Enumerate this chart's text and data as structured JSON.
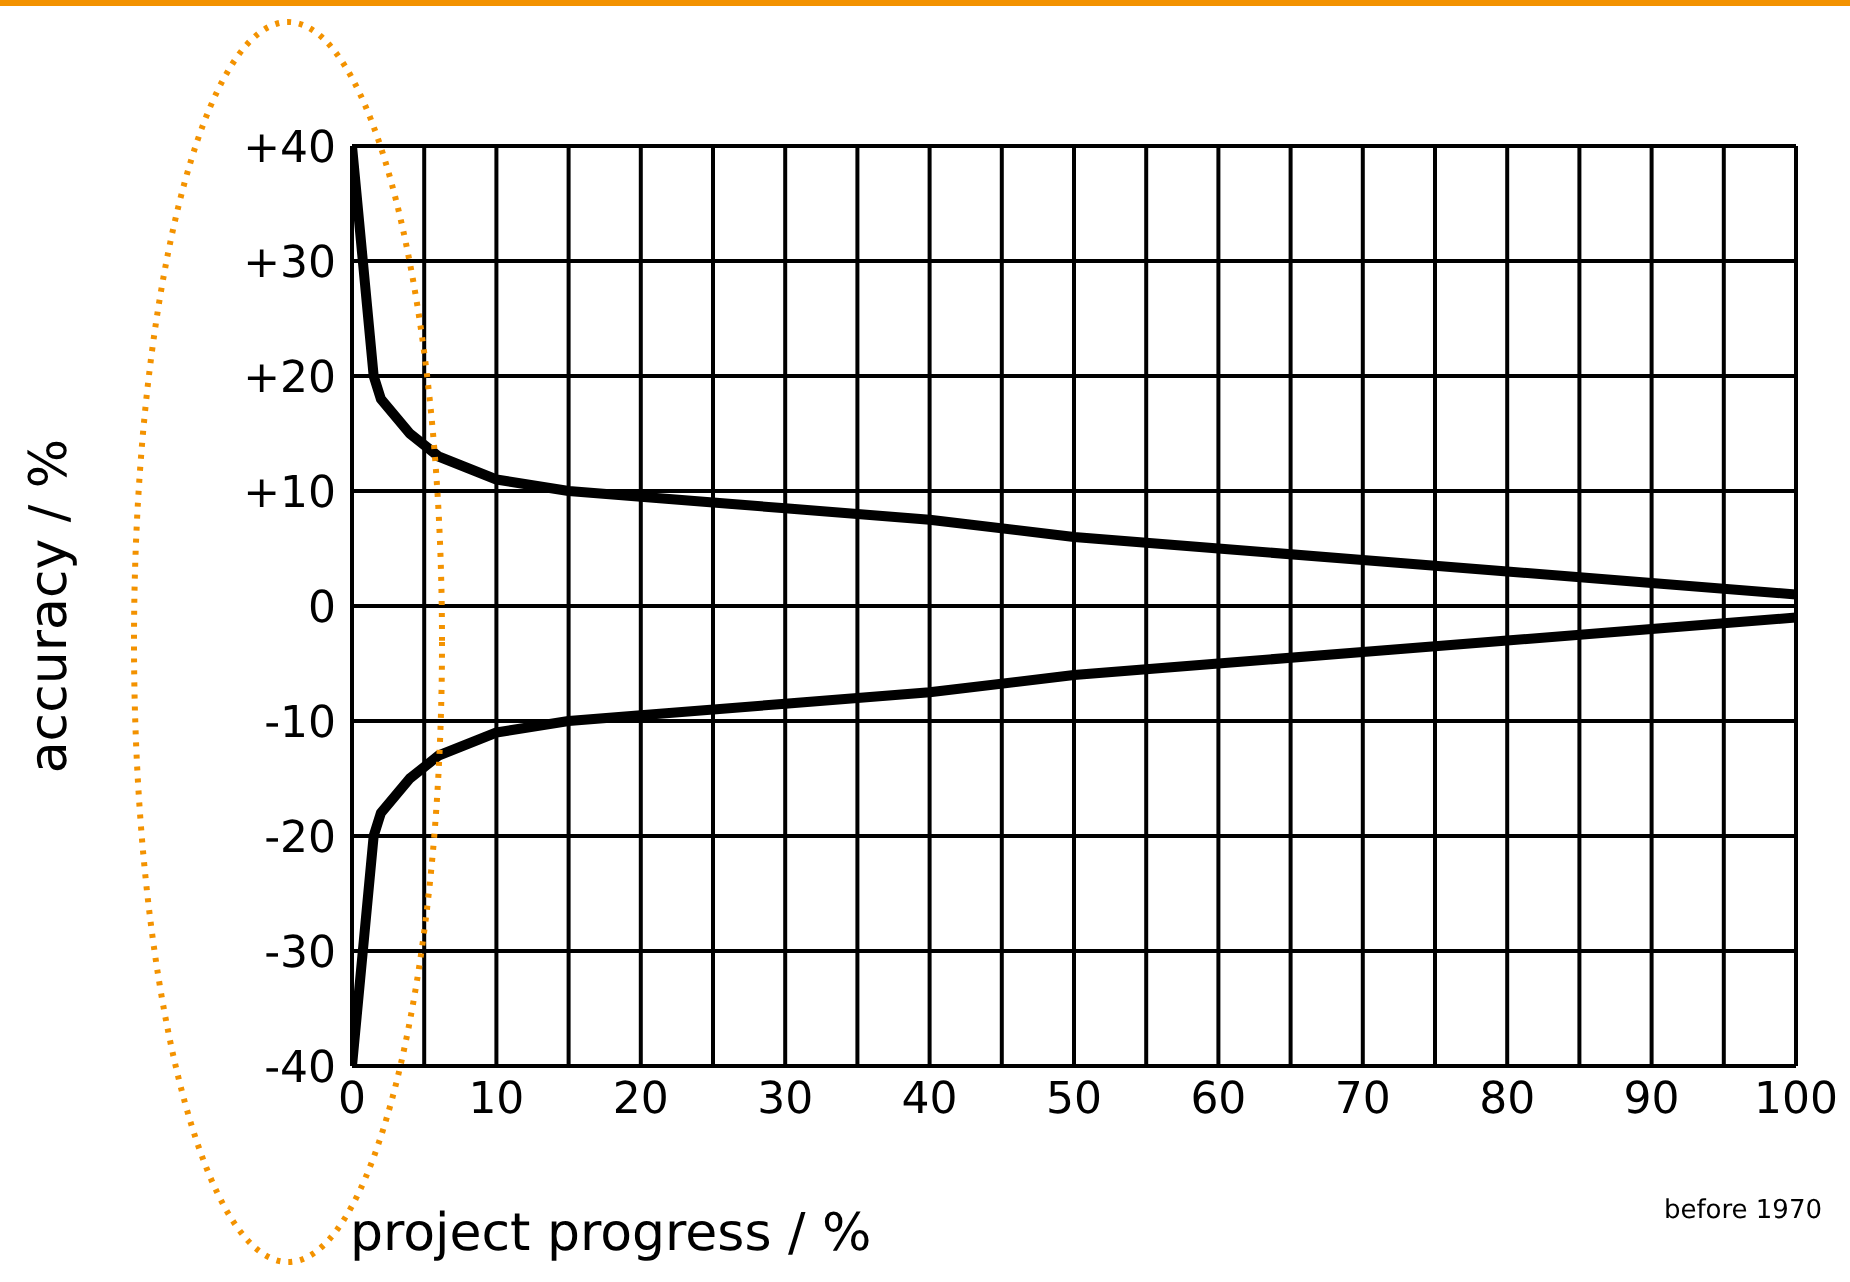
{
  "chart_data": {
    "type": "line",
    "xlabel": "project progress / %",
    "ylabel": "accuracy / %",
    "annotations": [
      "before 1970"
    ],
    "xlim": [
      0,
      100
    ],
    "ylim": [
      -40,
      40
    ],
    "xticks": [
      0,
      {
        "value": 5,
        "label": null
      },
      10,
      {
        "value": 15,
        "label": null
      },
      20,
      {
        "value": 25,
        "label": null
      },
      30,
      {
        "value": 35,
        "label": null
      },
      40,
      {
        "value": 45,
        "label": null
      },
      50,
      {
        "value": 55,
        "label": null
      },
      60,
      {
        "value": 65,
        "label": null
      },
      70,
      {
        "value": 75,
        "label": null
      },
      80,
      {
        "value": 85,
        "label": null
      },
      90,
      {
        "value": 95,
        "label": null
      },
      100
    ],
    "yticks": [
      {
        "value": 40,
        "label": "+40"
      },
      {
        "value": 30,
        "label": "+30"
      },
      {
        "value": 20,
        "label": "+20"
      },
      {
        "value": 10,
        "label": "+10"
      },
      0,
      -10,
      -20,
      -30,
      -40
    ],
    "grid": true,
    "legend": false,
    "marker": "none",
    "line_style": "solid",
    "x": [
      0,
      1.5,
      2,
      3,
      4,
      6,
      8,
      10,
      15,
      20,
      30,
      40,
      50,
      60,
      70,
      80,
      90,
      100
    ],
    "series": [
      {
        "color": "#000000",
        "values": [
          40,
          20,
          18,
          16.5,
          15,
          13,
          12,
          11,
          10,
          9.5,
          8.5,
          7.5,
          6,
          5,
          4,
          3,
          2,
          1
        ]
      },
      {
        "color": "#000000",
        "values": [
          -40,
          -20,
          -18,
          -16.5,
          -15,
          -13,
          -12,
          -11,
          -10,
          -9.5,
          -8.5,
          -7.5,
          -6,
          -5,
          -4,
          -3,
          -2,
          -1
        ]
      }
    ]
  }
}
